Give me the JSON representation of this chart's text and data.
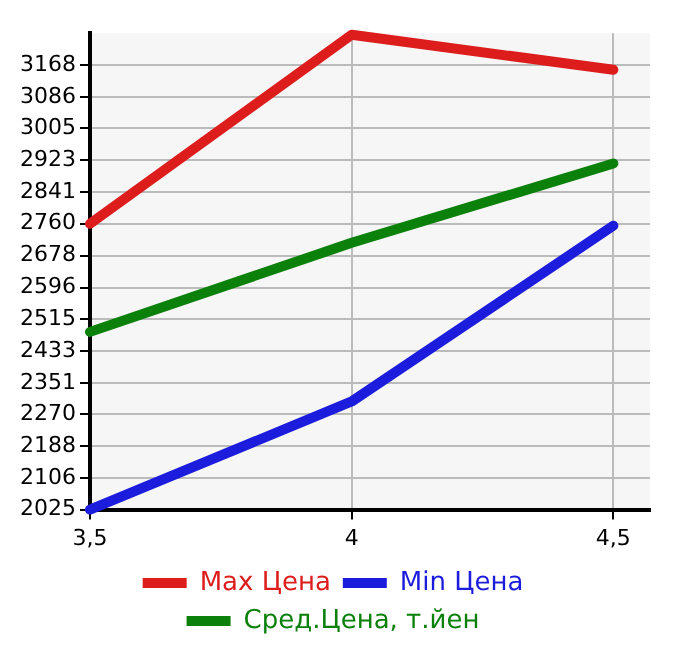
{
  "chart_data": {
    "type": "line",
    "x": [
      3.5,
      4,
      4.5
    ],
    "xlim": [
      3.5,
      4.57
    ],
    "ylim": [
      2025,
      3250
    ],
    "xticks": [
      {
        "value": 3.5,
        "label": "3,5"
      },
      {
        "value": 4,
        "label": "4"
      },
      {
        "value": 4.5,
        "label": "4,5"
      }
    ],
    "yticks": [
      2025,
      2106,
      2188,
      2270,
      2351,
      2433,
      2515,
      2596,
      2678,
      2760,
      2841,
      2923,
      3005,
      3086,
      3168
    ],
    "grid": true,
    "legend": "bottom",
    "marker": "none",
    "line_style": "solid",
    "series": [
      {
        "name": "Max Цена",
        "color": "#dd1c1c",
        "values": [
          2760,
          3246,
          3156
        ]
      },
      {
        "name": "Min Цена",
        "color": "#1c1cdd",
        "values": [
          2025,
          2303,
          2755
        ]
      },
      {
        "name": "Сред.Цена, т.йен",
        "color": "#0b800b",
        "values": [
          2482,
          2711,
          2915
        ]
      }
    ]
  }
}
